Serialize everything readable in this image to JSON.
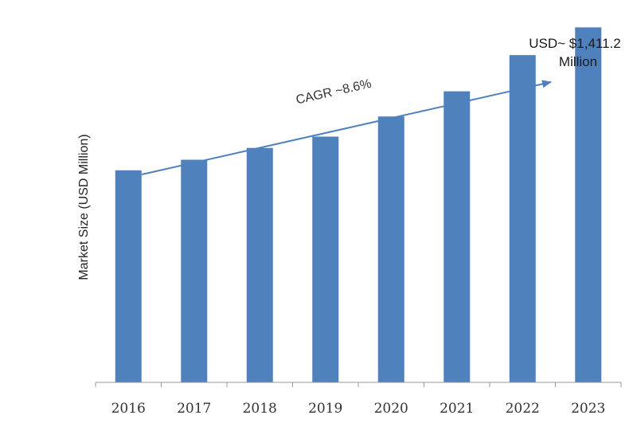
{
  "chart_data": {
    "type": "bar",
    "categories": [
      "2016",
      "2017",
      "2018",
      "2019",
      "2020",
      "2021",
      "2022",
      "2023"
    ],
    "values": [
      843,
      885,
      932,
      977,
      1057,
      1157,
      1301,
      1411.2
    ],
    "ylabel": "Market Size (USD Million)",
    "xlabel": "",
    "ylim": [
      0,
      1520
    ],
    "grid": false,
    "legend": "none",
    "bar_color": "#4f81bd",
    "arrow_color": "#4f81bd",
    "cagr_label": "CAGR ~8.6%",
    "last_value_label": [
      "USD~ $1,411.2",
      "Million"
    ]
  }
}
